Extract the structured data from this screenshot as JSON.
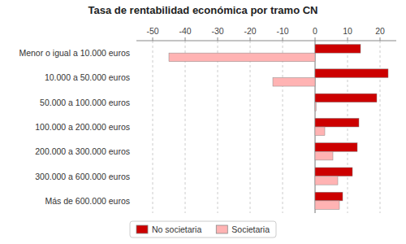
{
  "chart_data": {
    "type": "bar",
    "orientation": "horizontal",
    "title": "Tasa de rentabilidad económica por tramo CN",
    "categories": [
      "Menor o igual a 10.000 euros",
      "10.000 a 50.000 euros",
      "50.000 a 100.000 euros",
      "100.000 a 200.000 euros",
      "200.000 a 300.000 euros",
      "300.000 a 600.000 euros",
      "Más de 600.000 euros"
    ],
    "series": [
      {
        "name": "No societaria",
        "color": "#cc0000",
        "values": [
          14.0,
          22.5,
          19.0,
          13.5,
          13.0,
          11.5,
          8.5
        ]
      },
      {
        "name": "Societaria",
        "color": "#ffb3b3",
        "values": [
          -45.0,
          -13.0,
          0.3,
          3.0,
          5.5,
          7.0,
          7.5
        ]
      }
    ],
    "xlim": [
      -55,
      25
    ],
    "xticks": [
      -50,
      -40,
      -30,
      -20,
      -10,
      0,
      10,
      20
    ],
    "grid": true,
    "legend": "bottom"
  }
}
